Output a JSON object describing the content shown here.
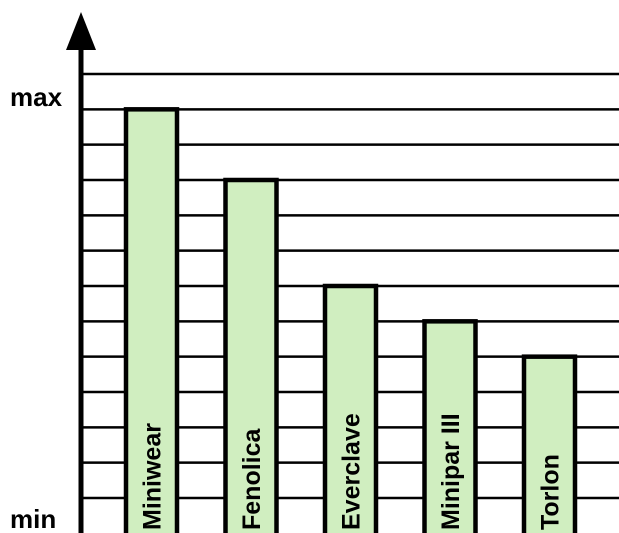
{
  "chart_data": {
    "type": "bar",
    "title": "",
    "xlabel": "",
    "ylabel": "",
    "categories": [
      "Miniwear",
      "Fenolica",
      "Everclave",
      "Minipar III",
      "Torlon"
    ],
    "values": [
      11,
      9,
      6,
      5,
      4
    ],
    "ylim": [
      0,
      12
    ],
    "y_axis_labels": {
      "max": "max",
      "min": "min"
    },
    "grid": true,
    "legend": "none",
    "colors": {
      "bar_fill": "#d0eec0",
      "bar_stroke": "#000000",
      "grid": "#000000",
      "axis": "#000000"
    }
  }
}
